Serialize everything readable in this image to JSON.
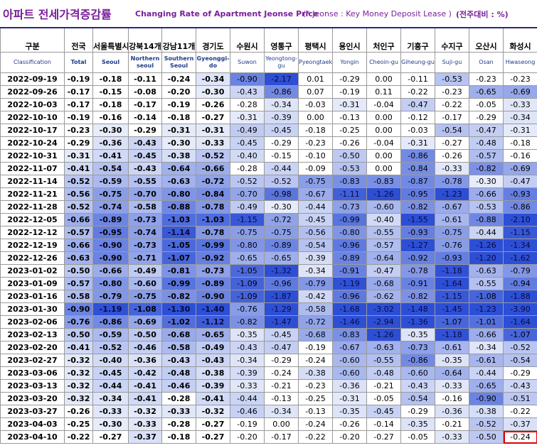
{
  "title": {
    "korean": "아파트 전세가격증감률",
    "english": "Changing Rate of Apartment Jeonse Price",
    "note": "(* Jeonse : Key Money Deposit Lease )",
    "unit": "(전주대비 : %)"
  },
  "columns": [
    {
      "ko": "구분",
      "en": "Classification"
    },
    {
      "ko": "전국",
      "en": "Total"
    },
    {
      "ko": "서울특별시",
      "en": "Seoul"
    },
    {
      "ko": "강북14개",
      "en": "Northern seoul"
    },
    {
      "ko": "강남11개",
      "en": "Southern Seoul"
    },
    {
      "ko": "경기도",
      "en": "Gyeonggi-do"
    },
    {
      "ko": "수원시",
      "en": "Suwon"
    },
    {
      "ko": "영통구",
      "en": "Yeongtong-gu"
    },
    {
      "ko": "평택시",
      "en": "Pyeongtaek"
    },
    {
      "ko": "용인시",
      "en": "Yongin"
    },
    {
      "ko": "처인구",
      "en": "Cheoin-gu"
    },
    {
      "ko": "기흥구",
      "en": "Giheung-gu"
    },
    {
      "ko": "수지구",
      "en": "Suji-gu"
    },
    {
      "ko": "오산시",
      "en": "Osan"
    },
    {
      "ko": "화성시",
      "en": "Hwaseong"
    }
  ],
  "rows": [
    {
      "date": "2022-09-19",
      "v": [
        "-0.19",
        "-0.18",
        "-0.11",
        "-0.24",
        "-0.34",
        "-0.90",
        "-2.17",
        "0.01",
        "-0.29",
        "0.00",
        "-0.11",
        "-0.53",
        "-0.23",
        "-0.23"
      ]
    },
    {
      "date": "2022-09-26",
      "v": [
        "-0.17",
        "-0.15",
        "-0.08",
        "-0.20",
        "-0.30",
        "-0.43",
        "-0.86",
        "0.07",
        "-0.19",
        "0.11",
        "-0.22",
        "-0.23",
        "-0.65",
        "-0.69"
      ]
    },
    {
      "date": "2022-10-03",
      "v": [
        "-0.17",
        "-0.18",
        "-0.17",
        "-0.19",
        "-0.26",
        "-0.28",
        "-0.34",
        "-0.03",
        "-0.31",
        "-0.04",
        "-0.47",
        "-0.22",
        "-0.05",
        "-0.33"
      ]
    },
    {
      "date": "2022-10-10",
      "v": [
        "-0.19",
        "-0.16",
        "-0.14",
        "-0.18",
        "-0.27",
        "-0.31",
        "-0.39",
        "0.00",
        "-0.13",
        "0.00",
        "-0.12",
        "-0.17",
        "-0.29",
        "-0.34"
      ]
    },
    {
      "date": "2022-10-17",
      "v": [
        "-0.23",
        "-0.30",
        "-0.29",
        "-0.31",
        "-0.31",
        "-0.49",
        "-0.45",
        "-0.18",
        "-0.25",
        "0.00",
        "-0.03",
        "-0.54",
        "-0.47",
        "-0.31"
      ]
    },
    {
      "date": "2022-10-24",
      "v": [
        "-0.29",
        "-0.36",
        "-0.43",
        "-0.30",
        "-0.33",
        "-0.45",
        "-0.29",
        "-0.23",
        "-0.26",
        "-0.04",
        "-0.31",
        "-0.27",
        "-0.48",
        "-0.18"
      ]
    },
    {
      "date": "2022-10-31",
      "v": [
        "-0.31",
        "-0.41",
        "-0.45",
        "-0.38",
        "-0.52",
        "-0.40",
        "-0.15",
        "-0.10",
        "-0.50",
        "0.00",
        "-0.86",
        "-0.26",
        "-0.57",
        "-0.16"
      ]
    },
    {
      "date": "2022-11-07",
      "v": [
        "-0.41",
        "-0.54",
        "-0.43",
        "-0.64",
        "-0.66",
        "-0.28",
        "-0.44",
        "-0.09",
        "-0.53",
        "0.00",
        "-0.84",
        "-0.33",
        "-0.82",
        "-0.69"
      ]
    },
    {
      "date": "2022-11-14",
      "v": [
        "-0.52",
        "-0.59",
        "-0.55",
        "-0.63",
        "-0.72",
        "-0.52",
        "-0.52",
        "-0.75",
        "-0.83",
        "-0.83",
        "-0.87",
        "-0.78",
        "-0.30",
        "-0.47"
      ]
    },
    {
      "date": "2022-11-21",
      "v": [
        "-0.56",
        "-0.75",
        "-0.70",
        "-0.80",
        "-0.84",
        "-0.70",
        "-0.98",
        "-0.67",
        "-1.11",
        "-1.26",
        "-0.95",
        "-1.23",
        "-0.66",
        "-0.93"
      ]
    },
    {
      "date": "2022-11-28",
      "v": [
        "-0.52",
        "-0.74",
        "-0.58",
        "-0.88",
        "-0.78",
        "-0.49",
        "-0.30",
        "-0.44",
        "-0.73",
        "-0.60",
        "-0.82",
        "-0.67",
        "-0.53",
        "-0.86"
      ]
    },
    {
      "date": "2022-12-05",
      "v": [
        "-0.66",
        "-0.89",
        "-0.73",
        "-1.03",
        "-1.03",
        "-1.15",
        "-0.72",
        "-0.45",
        "-0.99",
        "-0.40",
        "-1.55",
        "-0.61",
        "-0.88",
        "-2.10"
      ]
    },
    {
      "date": "2022-12-12",
      "v": [
        "-0.57",
        "-0.95",
        "-0.74",
        "-1.14",
        "-0.78",
        "-0.75",
        "-0.75",
        "-0.56",
        "-0.80",
        "-0.55",
        "-0.93",
        "-0.75",
        "-0.44",
        "-1.15"
      ]
    },
    {
      "date": "2022-12-19",
      "v": [
        "-0.66",
        "-0.90",
        "-0.73",
        "-1.05",
        "-0.99",
        "-0.80",
        "-0.89",
        "-0.54",
        "-0.96",
        "-0.57",
        "-1.27",
        "-0.76",
        "-1.26",
        "-1.34"
      ]
    },
    {
      "date": "2022-12-26",
      "v": [
        "-0.63",
        "-0.90",
        "-0.71",
        "-1.07",
        "-0.92",
        "-0.65",
        "-0.65",
        "-0.39",
        "-0.89",
        "-0.64",
        "-0.92",
        "-0.93",
        "-1.20",
        "-1.62"
      ]
    },
    {
      "date": "2023-01-02",
      "v": [
        "-0.50",
        "-0.66",
        "-0.49",
        "-0.81",
        "-0.73",
        "-1.05",
        "-1.32",
        "-0.34",
        "-0.91",
        "-0.47",
        "-0.78",
        "-1.18",
        "-0.63",
        "-0.79"
      ]
    },
    {
      "date": "2023-01-09",
      "v": [
        "-0.57",
        "-0.80",
        "-0.60",
        "-0.99",
        "-0.89",
        "-1.09",
        "-0.96",
        "-0.79",
        "-1.19",
        "-0.68",
        "-0.91",
        "-1.64",
        "-0.55",
        "-0.94"
      ]
    },
    {
      "date": "2023-01-16",
      "v": [
        "-0.58",
        "-0.79",
        "-0.75",
        "-0.82",
        "-0.90",
        "-1.09",
        "-1.87",
        "-0.42",
        "-0.96",
        "-0.62",
        "-0.82",
        "-1.15",
        "-1.08",
        "-1.88"
      ]
    },
    {
      "date": "2023-01-30",
      "v": [
        "-0.90",
        "-1.19",
        "-1.08",
        "-1.30",
        "-1.40",
        "-0.76",
        "-1.29",
        "-0.58",
        "-1.68",
        "-3.02",
        "-1.48",
        "-1.45",
        "-1.23",
        "-3.90"
      ]
    },
    {
      "date": "2023-02-06",
      "v": [
        "-0.76",
        "-0.86",
        "-0.69",
        "-1.02",
        "-1.12",
        "-0.82",
        "-1.47",
        "-0.72",
        "-1.46",
        "-2.94",
        "-1.36",
        "-1.07",
        "-1.01",
        "-1.64"
      ]
    },
    {
      "date": "2023-02-13",
      "v": [
        "-0.50",
        "-0.59",
        "-0.50",
        "-0.68",
        "-0.65",
        "-0.35",
        "-0.45",
        "-0.68",
        "-0.83",
        "-1.26",
        "-0.35",
        "-1.18",
        "-0.66",
        "-1.07"
      ]
    },
    {
      "date": "2023-02-20",
      "v": [
        "-0.41",
        "-0.52",
        "-0.46",
        "-0.58",
        "-0.49",
        "-0.43",
        "-0.47",
        "-0.19",
        "-0.67",
        "-0.63",
        "-0.73",
        "-0.61",
        "-0.34",
        "-0.52"
      ]
    },
    {
      "date": "2023-02-27",
      "v": [
        "-0.32",
        "-0.40",
        "-0.36",
        "-0.43",
        "-0.43",
        "-0.34",
        "-0.29",
        "-0.24",
        "-0.60",
        "-0.55",
        "-0.86",
        "-0.35",
        "-0.61",
        "-0.54"
      ]
    },
    {
      "date": "2023-03-06",
      "v": [
        "-0.32",
        "-0.45",
        "-0.42",
        "-0.48",
        "-0.38",
        "-0.39",
        "-0.24",
        "-0.38",
        "-0.60",
        "-0.48",
        "-0.60",
        "-0.64",
        "-0.44",
        "-0.29"
      ]
    },
    {
      "date": "2023-03-13",
      "v": [
        "-0.32",
        "-0.44",
        "-0.41",
        "-0.46",
        "-0.39",
        "-0.33",
        "-0.21",
        "-0.23",
        "-0.36",
        "-0.21",
        "-0.43",
        "-0.33",
        "-0.65",
        "-0.43"
      ]
    },
    {
      "date": "2023-03-20",
      "v": [
        "-0.32",
        "-0.34",
        "-0.41",
        "-0.28",
        "-0.41",
        "-0.44",
        "-0.13",
        "-0.25",
        "-0.31",
        "-0.05",
        "-0.54",
        "-0.16",
        "-0.90",
        "-0.51"
      ]
    },
    {
      "date": "2023-03-27",
      "v": [
        "-0.26",
        "-0.33",
        "-0.32",
        "-0.33",
        "-0.32",
        "-0.46",
        "-0.34",
        "-0.13",
        "-0.35",
        "-0.45",
        "-0.29",
        "-0.36",
        "-0.38",
        "-0.22"
      ]
    },
    {
      "date": "2023-04-03",
      "v": [
        "-0.25",
        "-0.30",
        "-0.33",
        "-0.28",
        "-0.27",
        "-0.19",
        "0.00",
        "-0.24",
        "-0.26",
        "-0.14",
        "-0.35",
        "-0.21",
        "-0.52",
        "-0.37"
      ]
    },
    {
      "date": "2023-04-10",
      "v": [
        "-0.22",
        "-0.27",
        "-0.37",
        "-0.18",
        "-0.27",
        "-0.20",
        "-0.17",
        "-0.22",
        "-0.20",
        "-0.27",
        "-0.05",
        "-0.33",
        "-0.50",
        "-0.24"
      ]
    }
  ],
  "colors": {
    "title": "#7a1f9a",
    "header_en": "#1f3c8a",
    "highlight_border": "#e00000",
    "shade_light": "#e7ecfa",
    "shade_dark": "#2d4fd6"
  },
  "bold_columns": [
    0,
    1,
    2,
    3,
    4
  ],
  "highlight_cell": {
    "row": 28,
    "col": 13
  }
}
